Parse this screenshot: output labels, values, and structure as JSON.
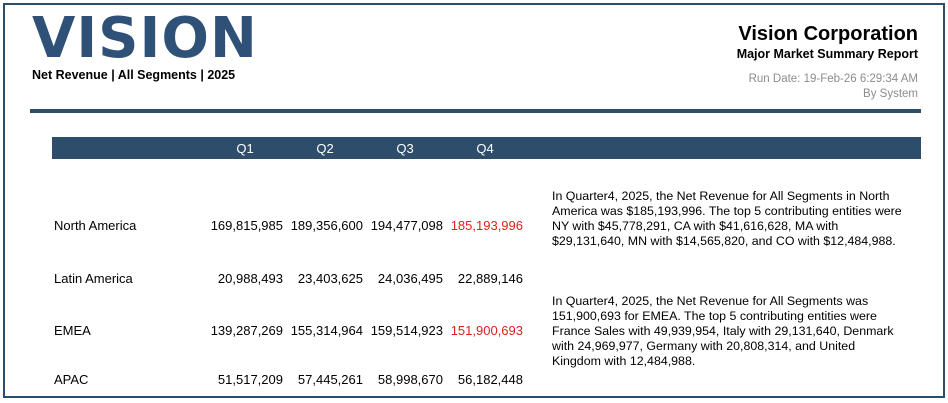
{
  "header": {
    "logo_text": "VISION",
    "subtitle": "Net Revenue | All Segments | 2025",
    "company": "Vision Corporation",
    "report_name": "Major Market Summary Report",
    "run_date": "Run Date: 19-Feb-26 6:29:34 AM",
    "run_by": "By System"
  },
  "table": {
    "columns": [
      "Q1",
      "Q2",
      "Q3",
      "Q4"
    ],
    "rows": [
      {
        "region": "North America",
        "values": [
          "169,815,985",
          "189,356,600",
          "194,477,098",
          "185,193,996"
        ],
        "note": "In Quarter4, 2025, the Net Revenue for All Segments in North America was $185,193,996. The top 5 contributing entities were NY with $45,778,291, CA with $41,616,628, MA with $29,131,640, MN with $14,565,820, and CO with $12,484,988."
      },
      {
        "region": "Latin America",
        "values": [
          "20,988,493",
          "23,403,625",
          "24,036,495",
          "22,889,146"
        ],
        "note": ""
      },
      {
        "region": "EMEA",
        "values": [
          "139,287,269",
          "155,314,964",
          "159,514,923",
          "151,900,693"
        ],
        "note": "In Quarter4, 2025, the Net Revenue for All Segments was 151,900,693 for EMEA. The top 5 contributing entities were France Sales with 49,939,954, Italy with 29,131,640, Denmark with 24,969,977, Germany with 20,808,314, and United Kingdom with 12,484,988."
      },
      {
        "region": "APAC",
        "values": [
          "51,517,209",
          "57,445,261",
          "58,998,670",
          "56,182,448"
        ],
        "note": ""
      }
    ]
  },
  "colors": {
    "brand": "#2e4d6b",
    "highlight": "#e0201b",
    "muted": "#8c8c8c"
  }
}
